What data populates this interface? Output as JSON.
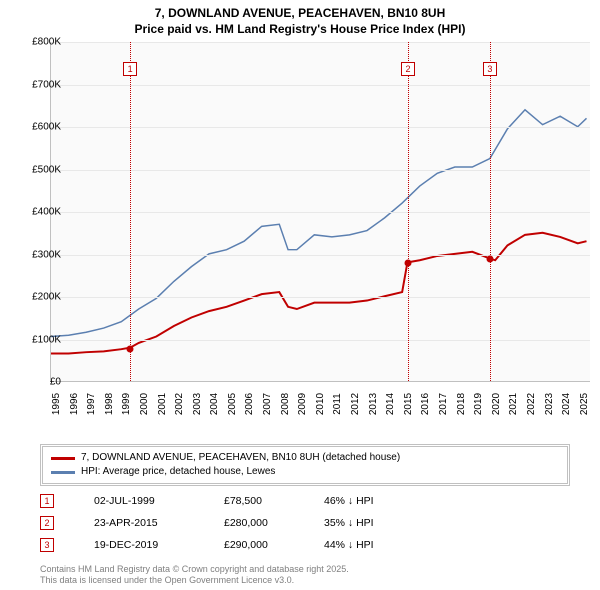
{
  "title": {
    "line1": "7, DOWNLAND AVENUE, PEACEHAVEN, BN10 8UH",
    "line2": "Price paid vs. HM Land Registry's House Price Index (HPI)"
  },
  "chart": {
    "type": "line",
    "background_color": "#fafafa",
    "grid_color": "#e8e8e8",
    "axis_color": "#c0c0c0",
    "ylim": [
      0,
      800000
    ],
    "ytick_step": 100000,
    "y_labels": [
      "£0",
      "£100K",
      "£200K",
      "£300K",
      "£400K",
      "£500K",
      "£600K",
      "£700K",
      "£800K"
    ],
    "x_years": [
      1995,
      1996,
      1997,
      1998,
      1999,
      2000,
      2001,
      2002,
      2003,
      2004,
      2005,
      2006,
      2007,
      2008,
      2009,
      2010,
      2011,
      2012,
      2013,
      2014,
      2015,
      2016,
      2017,
      2018,
      2019,
      2020,
      2021,
      2022,
      2023,
      2024,
      2025
    ],
    "series": [
      {
        "id": "price_paid",
        "label": "7, DOWNLAND AVENUE, PEACEHAVEN, BN10 8UH (detached house)",
        "color": "#c00000",
        "line_width": 2,
        "x": [
          1995.0,
          1996.0,
          1997.0,
          1998.0,
          1999.0,
          1999.5,
          2000.0,
          2001.0,
          2002.0,
          2003.0,
          2004.0,
          2005.0,
          2006.0,
          2007.0,
          2008.0,
          2008.5,
          2009.0,
          2010.0,
          2011.0,
          2012.0,
          2013.0,
          2014.0,
          2015.0,
          2015.3,
          2016.0,
          2017.0,
          2018.0,
          2019.0,
          2019.95,
          2020.3,
          2021.0,
          2022.0,
          2023.0,
          2024.0,
          2025.0,
          2025.5
        ],
        "y": [
          65000,
          65000,
          68000,
          70000,
          75000,
          78500,
          90000,
          105000,
          130000,
          150000,
          165000,
          175000,
          190000,
          205000,
          210000,
          175000,
          170000,
          185000,
          185000,
          185000,
          190000,
          200000,
          210000,
          280000,
          285000,
          295000,
          300000,
          305000,
          290000,
          285000,
          320000,
          345000,
          350000,
          340000,
          325000,
          330000
        ]
      },
      {
        "id": "hpi",
        "label": "HPI: Average price, detached house, Lewes",
        "color": "#5b7fb0",
        "line_width": 1.5,
        "x": [
          1995.0,
          1996.0,
          1997.0,
          1998.0,
          1999.0,
          2000.0,
          2001.0,
          2002.0,
          2003.0,
          2004.0,
          2005.0,
          2006.0,
          2007.0,
          2008.0,
          2008.5,
          2009.0,
          2010.0,
          2011.0,
          2012.0,
          2013.0,
          2014.0,
          2015.0,
          2016.0,
          2017.0,
          2018.0,
          2019.0,
          2020.0,
          2021.0,
          2022.0,
          2023.0,
          2024.0,
          2025.0,
          2025.5
        ],
        "y": [
          105000,
          108000,
          115000,
          125000,
          140000,
          170000,
          195000,
          235000,
          270000,
          300000,
          310000,
          330000,
          365000,
          370000,
          310000,
          310000,
          345000,
          340000,
          345000,
          355000,
          385000,
          420000,
          460000,
          490000,
          505000,
          505000,
          525000,
          595000,
          640000,
          605000,
          625000,
          600000,
          620000
        ]
      }
    ],
    "markers": [
      {
        "id": "1",
        "x": 1999.5,
        "y": 78500,
        "badge_top_pct": 8
      },
      {
        "id": "2",
        "x": 2015.3,
        "y": 280000,
        "badge_top_pct": 8
      },
      {
        "id": "3",
        "x": 2019.95,
        "y": 290000,
        "badge_top_pct": 8
      }
    ]
  },
  "legend": {
    "row1": {
      "color": "#c00000",
      "label": "7, DOWNLAND AVENUE, PEACEHAVEN, BN10 8UH (detached house)"
    },
    "row2": {
      "color": "#5b7fb0",
      "label": "HPI: Average price, detached house, Lewes"
    }
  },
  "sales": [
    {
      "id": "1",
      "date": "02-JUL-1999",
      "price": "£78,500",
      "pct": "46% ↓ HPI"
    },
    {
      "id": "2",
      "date": "23-APR-2015",
      "price": "£280,000",
      "pct": "35% ↓ HPI"
    },
    {
      "id": "3",
      "date": "19-DEC-2019",
      "price": "£290,000",
      "pct": "44% ↓ HPI"
    }
  ],
  "attribution": {
    "line1": "Contains HM Land Registry data © Crown copyright and database right 2025.",
    "line2": "This data is licensed under the Open Government Licence v3.0."
  }
}
